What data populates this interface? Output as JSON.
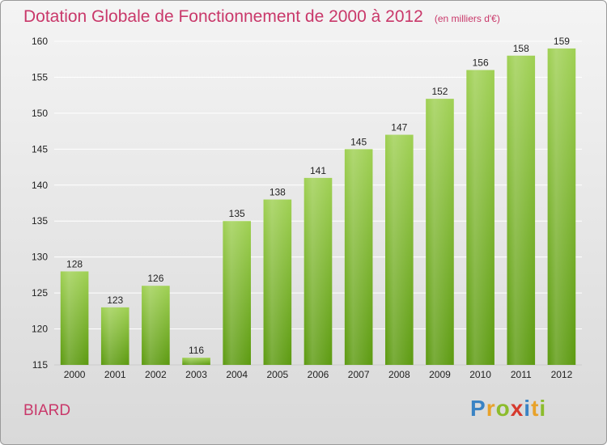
{
  "title": "Dotation Globale de Fonctionnement de 2000 à 2012",
  "subtitle": "(en milliers d'€)",
  "commune": "BIARD",
  "logo": {
    "text": "Proxiti",
    "letters": [
      {
        "ch": "P",
        "color": "#3a83c4"
      },
      {
        "ch": "r",
        "color": "#e8a22a"
      },
      {
        "ch": "o",
        "color": "#8cbc2c"
      },
      {
        "ch": "x",
        "color": "#d63a2e"
      },
      {
        "ch": "i",
        "color": "#3a83c4"
      },
      {
        "ch": "t",
        "color": "#e8a22a"
      },
      {
        "ch": "i",
        "color": "#8cbc2c"
      }
    ]
  },
  "colors": {
    "accent": "#c9386a",
    "bar_top": "#9fd053",
    "bar_bottom": "#5c9a10",
    "grid": "#ffffff",
    "axis_text": "#222222"
  },
  "chart_data": {
    "type": "bar",
    "title": "Dotation Globale de Fonctionnement de 2000 à 2012",
    "subtitle": "(en milliers d'€)",
    "categories": [
      "2000",
      "2001",
      "2002",
      "2003",
      "2004",
      "2005",
      "2006",
      "2007",
      "2008",
      "2009",
      "2010",
      "2011",
      "2012"
    ],
    "values": [
      128,
      123,
      126,
      116,
      135,
      138,
      141,
      145,
      147,
      152,
      156,
      158,
      159
    ],
    "ylim": [
      115,
      160
    ],
    "yticks": [
      115,
      120,
      125,
      130,
      135,
      140,
      145,
      150,
      155,
      160
    ],
    "grid": true,
    "xlabel": "",
    "ylabel": ""
  }
}
